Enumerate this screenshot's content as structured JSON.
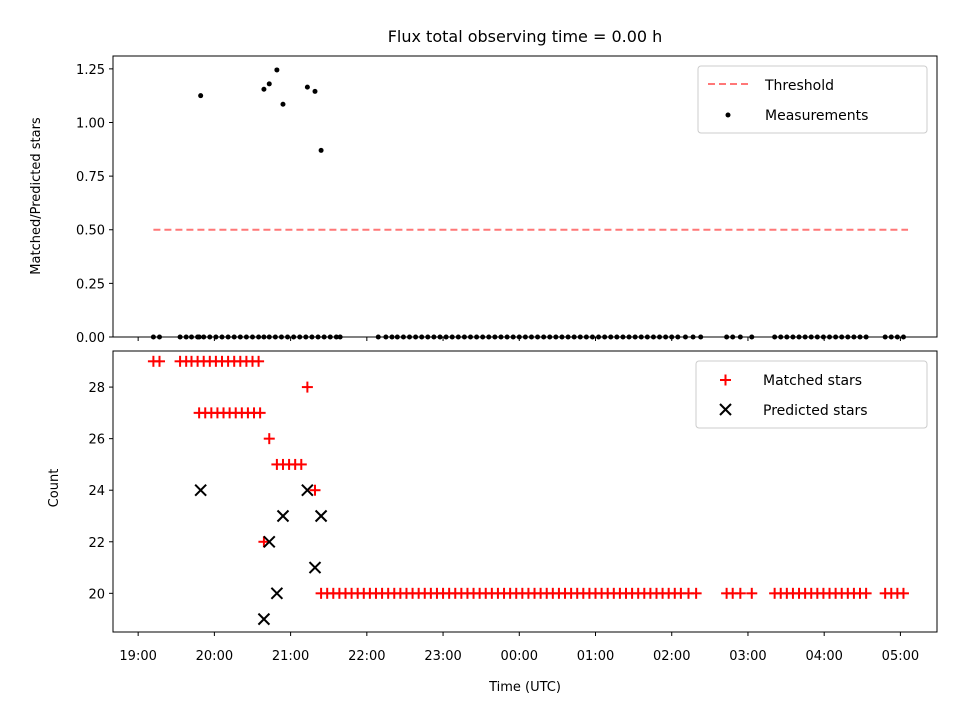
{
  "colors": {
    "matched": "#ff0000",
    "predicted": "#000000",
    "threshold": "#ff7777",
    "measurement": "#000000"
  },
  "chart_data": [
    {
      "type": "scatter",
      "title": "Flux total observing time = 0.00 h",
      "xlabel": "",
      "ylabel": "Matched/Predicted stars",
      "x_units": "hours since 19:00 UTC",
      "xlim": [
        -0.33,
        10.48
      ],
      "ylim": [
        0.0,
        1.31
      ],
      "yticks": [
        0.0,
        0.25,
        0.5,
        0.75,
        1.0,
        1.25
      ],
      "ytick_labels": [
        "0.00",
        "0.25",
        "0.50",
        "0.75",
        "1.00",
        "1.25"
      ],
      "legend_position": "top-right",
      "series": [
        {
          "name": "Threshold",
          "kind": "dashed-line",
          "x": [
            0.2,
            10.1
          ],
          "y": [
            0.5,
            0.5
          ]
        },
        {
          "name": "Measurements",
          "kind": "points",
          "x": [
            0.8,
            1.65,
            2.65,
            3.15,
            3.4,
            0.2,
            0.28,
            0.55,
            0.63,
            0.7,
            0.78,
            0.86,
            0.94,
            1.02,
            1.1,
            1.18,
            1.26,
            1.34,
            1.42,
            1.5,
            1.58,
            1.72,
            1.8,
            1.88,
            1.96,
            2.04,
            2.12,
            2.2,
            2.28,
            2.36,
            2.44,
            2.52,
            2.6,
            3.25,
            3.33,
            3.48,
            3.56,
            3.64,
            3.72,
            3.8,
            3.88,
            3.96,
            4.04,
            4.12,
            4.2,
            4.28,
            4.36,
            4.44,
            4.52,
            4.6,
            4.68,
            4.76,
            4.84,
            4.92,
            5.0,
            5.08,
            5.16,
            5.24,
            5.32,
            5.4,
            5.48,
            5.56,
            5.64,
            5.72,
            5.8,
            5.88,
            5.96,
            6.04,
            6.12,
            6.2,
            6.28,
            6.36,
            6.44,
            6.52,
            6.6,
            6.68,
            6.76,
            6.84,
            6.92,
            7.0,
            7.08,
            7.18,
            7.28,
            7.38,
            7.72,
            7.8,
            7.9,
            8.05,
            8.35,
            8.43,
            8.51,
            8.59,
            8.67,
            8.75,
            8.83,
            8.91,
            8.99,
            9.07,
            9.15,
            9.23,
            9.31,
            9.39,
            9.47,
            9.55,
            9.8,
            9.88,
            9.96,
            10.04
          ],
          "y": [
            0.0,
            0.0,
            0.0,
            0.0,
            0.0,
            0.0,
            0.0,
            0.0,
            0.0,
            0.0,
            0.0,
            0.0,
            0.0,
            0.0,
            0.0,
            0.0,
            0.0,
            0.0,
            0.0,
            0.0,
            0.0,
            0.0,
            0.0,
            0.0,
            0.0,
            0.0,
            0.0,
            0.0,
            0.0,
            0.0,
            0.0,
            0.0,
            0.0,
            0.0,
            0.0,
            0.0,
            0.0,
            0.0,
            0.0,
            0.0,
            0.0,
            0.0,
            0.0,
            0.0,
            0.0,
            0.0,
            0.0,
            0.0,
            0.0,
            0.0,
            0.0,
            0.0,
            0.0,
            0.0,
            0.0,
            0.0,
            0.0,
            0.0,
            0.0,
            0.0,
            0.0,
            0.0,
            0.0,
            0.0,
            0.0,
            0.0,
            0.0,
            0.0,
            0.0,
            0.0,
            0.0,
            0.0,
            0.0,
            0.0,
            0.0,
            0.0,
            0.0,
            0.0,
            0.0,
            0.0,
            0.0,
            0.0,
            0.0,
            0.0,
            0.0,
            0.0,
            0.0,
            0.0,
            0.0,
            0.0,
            0.0,
            0.0,
            0.0,
            0.0,
            0.0,
            0.0,
            0.0,
            0.0,
            0.0,
            0.0,
            0.0,
            0.0,
            0.0,
            0.0,
            0.0,
            0.0,
            0.0,
            0.0
          ],
          "highlights": {
            "x": [
              0.82,
              1.65,
              1.72,
              1.82,
              1.9,
              2.22,
              2.32,
              2.4
            ],
            "y": [
              1.125,
              1.155,
              1.18,
              1.245,
              1.085,
              1.165,
              1.145,
              0.87
            ]
          }
        }
      ]
    },
    {
      "type": "scatter",
      "title": "",
      "xlabel": "Time (UTC)",
      "ylabel": "Count",
      "x_units": "hours since 19:00 UTC",
      "xlim": [
        -0.33,
        10.48
      ],
      "ylim": [
        18.5,
        29.4
      ],
      "yticks": [
        20,
        22,
        24,
        26,
        28
      ],
      "ytick_labels": [
        "20",
        "22",
        "24",
        "26",
        "28"
      ],
      "xticks": [
        0,
        1,
        2,
        3,
        4,
        5,
        6,
        7,
        8,
        9,
        10
      ],
      "xtick_labels": [
        "19:00",
        "20:00",
        "21:00",
        "22:00",
        "23:00",
        "00:00",
        "01:00",
        "02:00",
        "03:00",
        "04:00",
        "05:00"
      ],
      "legend_position": "top-right",
      "series": [
        {
          "name": "Matched stars",
          "marker": "plus",
          "x": [
            0.2,
            0.28,
            0.55,
            0.63,
            0.7,
            0.78,
            0.86,
            0.94,
            1.02,
            1.1,
            1.18,
            1.26,
            1.34,
            1.42,
            1.5,
            1.58,
            0.8,
            0.88,
            0.96,
            1.04,
            1.12,
            1.2,
            1.28,
            1.36,
            1.44,
            1.52,
            1.6,
            1.72,
            1.82,
            1.9,
            1.98,
            2.06,
            2.14,
            2.22,
            2.32,
            1.65,
            2.4,
            2.48,
            2.56,
            2.64,
            2.72,
            2.8,
            2.88,
            2.96,
            3.04,
            3.12,
            3.2,
            3.28,
            3.36,
            3.44,
            3.52,
            3.6,
            3.68,
            3.76,
            3.84,
            3.92,
            4.0,
            4.08,
            4.16,
            4.24,
            4.32,
            4.4,
            4.48,
            4.56,
            4.64,
            4.72,
            4.8,
            4.88,
            4.96,
            5.04,
            5.12,
            5.2,
            5.28,
            5.36,
            5.44,
            5.52,
            5.6,
            5.68,
            5.76,
            5.84,
            5.92,
            6.0,
            6.08,
            6.16,
            6.24,
            6.32,
            6.4,
            6.48,
            6.56,
            6.64,
            6.72,
            6.8,
            6.88,
            6.96,
            7.04,
            7.12,
            7.22,
            7.32,
            7.72,
            7.8,
            7.9,
            8.05,
            8.35,
            8.43,
            8.51,
            8.59,
            8.67,
            8.75,
            8.83,
            8.91,
            8.99,
            9.07,
            9.15,
            9.23,
            9.31,
            9.39,
            9.47,
            9.55,
            9.8,
            9.88,
            9.96,
            10.04
          ],
          "y": [
            29,
            29,
            29,
            29,
            29,
            29,
            29,
            29,
            29,
            29,
            29,
            29,
            29,
            29,
            29,
            29,
            27,
            27,
            27,
            27,
            27,
            27,
            27,
            27,
            27,
            27,
            27,
            26,
            25,
            25,
            25,
            25,
            25,
            28,
            24,
            22,
            20,
            20,
            20,
            20,
            20,
            20,
            20,
            20,
            20,
            20,
            20,
            20,
            20,
            20,
            20,
            20,
            20,
            20,
            20,
            20,
            20,
            20,
            20,
            20,
            20,
            20,
            20,
            20,
            20,
            20,
            20,
            20,
            20,
            20,
            20,
            20,
            20,
            20,
            20,
            20,
            20,
            20,
            20,
            20,
            20,
            20,
            20,
            20,
            20,
            20,
            20,
            20,
            20,
            20,
            20,
            20,
            20,
            20,
            20,
            20,
            20,
            20,
            20,
            20,
            20,
            20,
            20,
            20,
            20,
            20,
            20,
            20,
            20,
            20,
            20,
            20,
            20,
            20,
            20,
            20,
            20,
            20,
            20,
            20,
            20,
            20
          ]
        },
        {
          "name": "Predicted stars",
          "marker": "cross",
          "x": [
            0.82,
            1.65,
            1.72,
            1.82,
            1.9,
            2.22,
            2.32,
            2.4
          ],
          "y": [
            24,
            19,
            22,
            20,
            23,
            24,
            21,
            23
          ]
        }
      ]
    }
  ]
}
